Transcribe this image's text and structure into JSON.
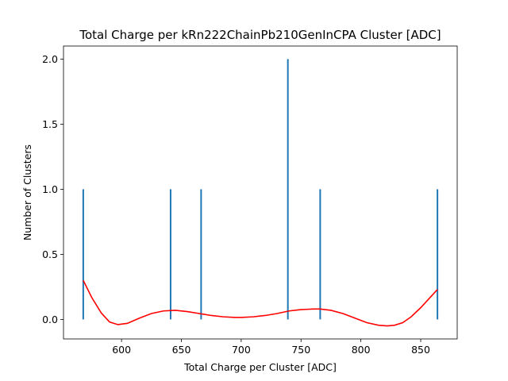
{
  "chart_data": {
    "type": "bar",
    "title": "Total Charge per kRn222ChainPb210GenInCPA Cluster [ADC]",
    "xlabel": "Total Charge per Cluster [ADC]",
    "ylabel": "Number of Clusters",
    "xlim": [
      551.5,
      880.5
    ],
    "ylim": [
      -0.15,
      2.1
    ],
    "xticks": [
      600,
      650,
      700,
      750,
      800,
      850
    ],
    "yticks": [
      0.0,
      0.5,
      1.0,
      1.5,
      2.0
    ],
    "xtick_labels": [
      "600",
      "650",
      "700",
      "750",
      "800",
      "850"
    ],
    "ytick_labels": [
      "0.0",
      "0.5",
      "1.0",
      "1.5",
      "2.0"
    ],
    "grid": false,
    "bar_color": "#1f77b4",
    "bars": [
      {
        "x": 568,
        "value": 1
      },
      {
        "x": 641,
        "value": 1
      },
      {
        "x": 666.5,
        "value": 1
      },
      {
        "x": 739,
        "value": 2
      },
      {
        "x": 766,
        "value": 1
      },
      {
        "x": 864,
        "value": 1
      }
    ],
    "curve": {
      "color": "#ff0000",
      "x": [
        568,
        575,
        583,
        590,
        597,
        605,
        615,
        625,
        635,
        645,
        655,
        665,
        675,
        685,
        695,
        700,
        710,
        720,
        730,
        740,
        750,
        760,
        766,
        775,
        785,
        795,
        805,
        815,
        822,
        828,
        835,
        842,
        850,
        857,
        864
      ],
      "y": [
        0.3,
        0.17,
        0.05,
        -0.02,
        -0.04,
        -0.03,
        0.01,
        0.045,
        0.065,
        0.07,
        0.06,
        0.045,
        0.03,
        0.02,
        0.015,
        0.015,
        0.02,
        0.03,
        0.045,
        0.065,
        0.075,
        0.08,
        0.08,
        0.07,
        0.045,
        0.01,
        -0.025,
        -0.045,
        -0.05,
        -0.045,
        -0.025,
        0.02,
        0.09,
        0.16,
        0.23
      ]
    }
  }
}
